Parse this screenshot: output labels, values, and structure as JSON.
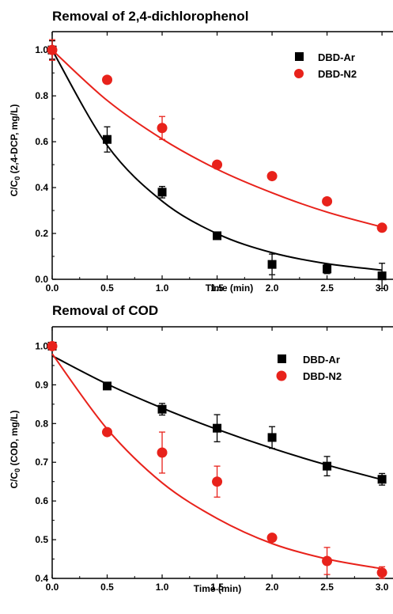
{
  "chart_data": [
    {
      "type": "scatter",
      "title": "Removal of 2,4-dichlorophenol",
      "xlabel": "Time (min)",
      "ylabel": "C/C0 (2,4-DCP, mg/L)",
      "ylabel_main": "C/C",
      "ylabel_sub": "0",
      "ylabel_rest": " (2,4-DCP, mg/L)",
      "xlim": [
        0,
        3.1
      ],
      "ylim": [
        0,
        1.08
      ],
      "xticks": [
        0,
        0.5,
        1,
        1.5,
        2,
        2.5,
        3
      ],
      "xtick_labels": [
        "0.0",
        "0.5",
        "1.0",
        "1.5",
        "2.0",
        "2.5",
        "3.0"
      ],
      "yticks": [
        0,
        0.2,
        0.4,
        0.6,
        0.8,
        1.0
      ],
      "ytick_labels": [
        "0.0",
        "0.2",
        "0.4",
        "0.6",
        "0.8",
        "1.0"
      ],
      "grid": false,
      "legend_position": "top-right",
      "series": [
        {
          "name": "DBD-Ar",
          "color": "#000000",
          "marker": "square",
          "x": [
            0,
            0.5,
            1.0,
            1.5,
            2.0,
            2.5,
            3.0
          ],
          "y": [
            1.0,
            0.61,
            0.38,
            0.19,
            0.065,
            0.045,
            0.015
          ],
          "err": [
            0.04,
            0.055,
            0.025,
            0.015,
            0.045,
            0.02,
            0.055
          ],
          "fit": [
            1.0,
            0.584,
            0.341,
            0.199,
            0.116,
            0.068,
            0.04
          ]
        },
        {
          "name": "DBD-N2",
          "color": "#e8221b",
          "marker": "circle",
          "x": [
            0,
            0.5,
            1.0,
            1.5,
            2.0,
            2.5,
            3.0
          ],
          "y": [
            1.0,
            0.87,
            0.66,
            0.5,
            0.45,
            0.34,
            0.225
          ],
          "err": [
            0.045,
            0,
            0.05,
            0,
            0,
            0,
            0
          ],
          "fit": [
            1.0,
            0.78,
            0.612,
            0.48,
            0.377,
            0.293,
            0.228
          ]
        }
      ]
    },
    {
      "type": "scatter",
      "title": "Removal of COD",
      "xlabel": "Time (min)",
      "ylabel": "C/C0 (COD, mg/L)",
      "ylabel_main": "C/C",
      "ylabel_sub": "0",
      "ylabel_rest": " (COD, mg/L)",
      "xlim": [
        0,
        3.1
      ],
      "ylim": [
        0.4,
        1.05
      ],
      "xticks": [
        0,
        0.5,
        1,
        1.5,
        2,
        2.5,
        3
      ],
      "xtick_labels": [
        "0.0",
        "0.5",
        "1.0",
        "1.5",
        "2.0",
        "2.5",
        "3.0"
      ],
      "yticks": [
        0.4,
        0.5,
        0.6,
        0.7,
        0.8,
        0.9,
        1.0
      ],
      "ytick_labels": [
        "0.4",
        "0.5",
        "0.6",
        "0.7",
        "0.8",
        "0.9",
        "1.0"
      ],
      "grid": false,
      "legend_position": "top-right",
      "series": [
        {
          "name": "DBD-Ar",
          "color": "#000000",
          "marker": "square",
          "x": [
            0,
            0.5,
            1.0,
            1.5,
            2.0,
            2.5,
            3.0
          ],
          "y": [
            1.0,
            0.897,
            0.837,
            0.788,
            0.764,
            0.69,
            0.656
          ],
          "err": [
            0,
            0,
            0.015,
            0.035,
            0.028,
            0.025,
            0.015
          ],
          "fit": [
            0.975,
            0.902,
            0.84,
            0.785,
            0.736,
            0.693,
            0.655
          ]
        },
        {
          "name": "DBD-N2",
          "color": "#e8221b",
          "marker": "circle",
          "x": [
            0,
            0.5,
            1.0,
            1.5,
            2.0,
            2.5,
            3.0
          ],
          "y": [
            1.0,
            0.778,
            0.725,
            0.65,
            0.505,
            0.445,
            0.415
          ],
          "err": [
            0,
            0,
            0.053,
            0.04,
            0,
            0.035,
            0.015
          ],
          "fit": [
            0.98,
            0.786,
            0.647,
            0.555,
            0.49,
            0.45,
            0.425
          ]
        }
      ]
    }
  ]
}
